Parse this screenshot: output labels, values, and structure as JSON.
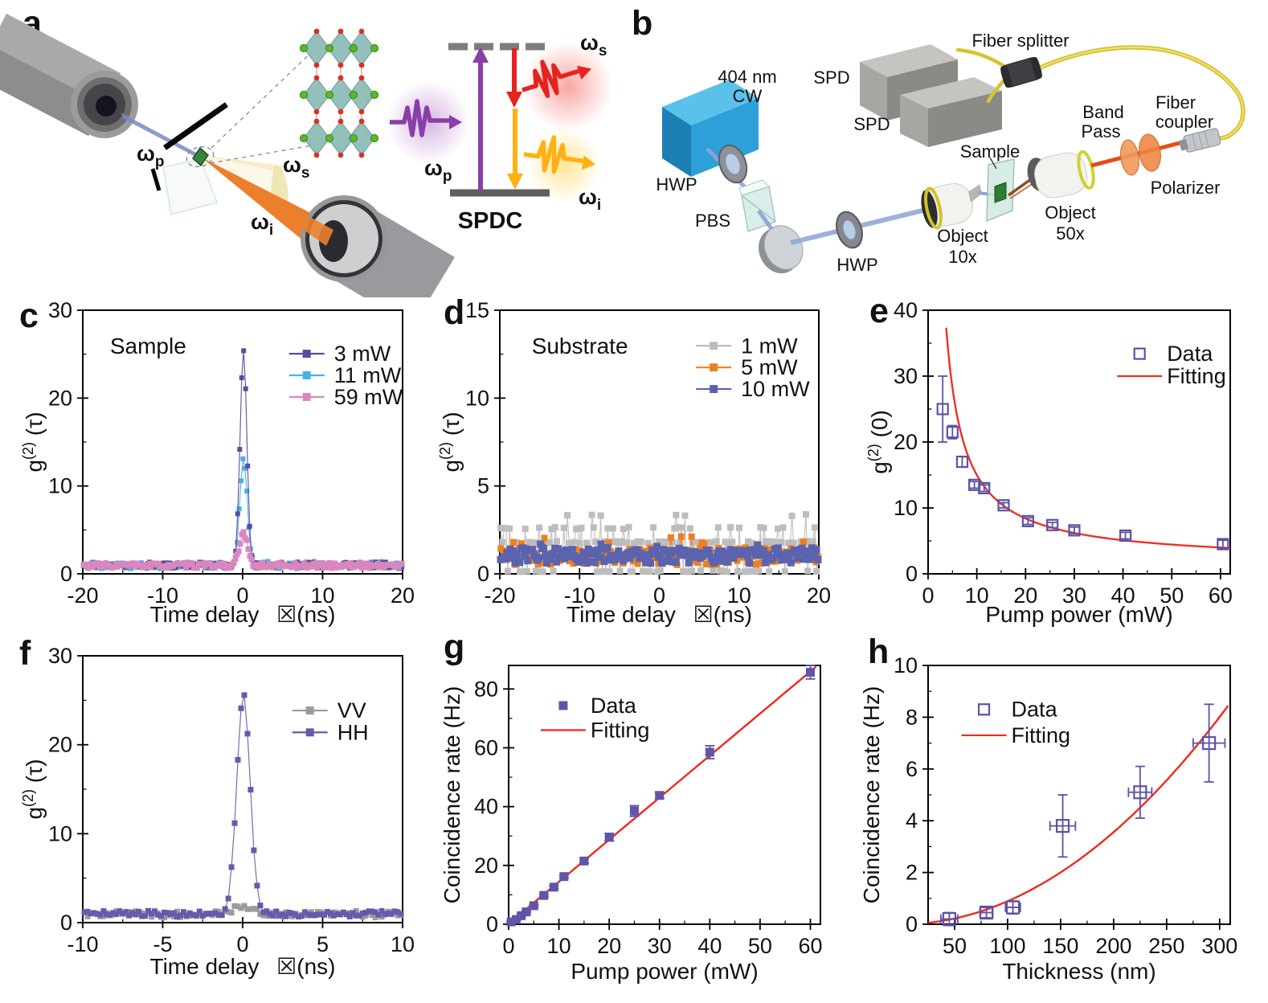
{
  "panels": {
    "a": "a",
    "b": "b",
    "c": "c",
    "d": "d",
    "e": "e",
    "f": "f",
    "g": "g",
    "h": "h"
  },
  "panel_a": {
    "omega_p_scene": {
      "base": "ω",
      "sub": "p"
    },
    "omega_s_scene": {
      "base": "ω",
      "sub": "s"
    },
    "omega_i_scene": {
      "base": "ω",
      "sub": "i"
    },
    "omega_p_level": {
      "base": "ω",
      "sub": "p"
    },
    "omega_s_level": {
      "base": "ω",
      "sub": "s"
    },
    "omega_i_level": {
      "base": "ω",
      "sub": "i"
    },
    "spdc_label": "SPDC"
  },
  "panel_b": {
    "laser_label": [
      "404 nm",
      "CW"
    ],
    "hwp1": "HWP",
    "pbs": "PBS",
    "hwp2": "HWP",
    "spd1": "SPD",
    "spd2": "SPD",
    "fiber_splitter": "Fiber splitter",
    "band_pass": [
      "Band",
      "Pass"
    ],
    "fiber_coupler": [
      "Fiber",
      "coupler"
    ],
    "sample": "Sample",
    "object10": [
      "Object",
      "10x"
    ],
    "object50": [
      "Object",
      "50x"
    ],
    "polarizer": "Polarizer"
  },
  "colors": {
    "fit_red": "#ee3124",
    "marker_purple": "#5f51a5",
    "purple_3mw": "#5b4b9e",
    "blue_11mw": "#47b1e6",
    "pink_59mw": "#d887bd",
    "gray_1mw": "#bdbdbd",
    "orange_5mw": "#f07f1f",
    "blue_10mw": "#5a63ae",
    "gray_vv": "#9b9b9b",
    "purple_hh": "#6a58ad"
  },
  "chart_data": [
    {
      "id": "c",
      "type": "line",
      "note": {
        "text": "Sample",
        "fx": 0.085,
        "fy": 0.165
      },
      "xlabel": "Time delay  ☒(ns)",
      "ylabel": {
        "pre": "g",
        "sup": "(2)",
        "post": " (τ)"
      },
      "xlim": [
        -20,
        20
      ],
      "ylim": [
        0,
        30
      ],
      "xticks": [
        -20,
        -10,
        0,
        10,
        20
      ],
      "yticks": [
        0,
        10,
        20,
        30
      ],
      "xminor": 5,
      "yminor": 5,
      "series": [
        {
          "name": "3 mW",
          "color": "#5b4b9e",
          "kind": "g2",
          "baseline": 1.0,
          "noise": 0.35,
          "peak": 24.5,
          "center": 0.1,
          "sigma": 0.42,
          "step": 0.25,
          "seed": 11,
          "marker": 6
        },
        {
          "name": "11 mW",
          "color": "#47b1e6",
          "kind": "g2",
          "baseline": 1.0,
          "noise": 0.42,
          "peak": 12.2,
          "center": 0.1,
          "sigma": 0.46,
          "step": 0.24,
          "seed": 22,
          "marker": 6
        },
        {
          "name": "59 mW",
          "color": "#d887bd",
          "kind": "g2",
          "baseline": 0.95,
          "noise": 0.3,
          "peak": 3.6,
          "center": 0.1,
          "sigma": 0.5,
          "step": 0.2,
          "seed": 33,
          "marker": 7
        }
      ],
      "draw_order": [
        1,
        0,
        2
      ],
      "legend": {
        "style": "series",
        "fx": 0.645,
        "fy": 0.165,
        "dfy": 0.082
      }
    },
    {
      "id": "d",
      "type": "line",
      "note": {
        "text": "Substrate",
        "fx": 0.1,
        "fy": 0.165
      },
      "xlabel": "Time delay  ☒(ns)",
      "ylabel": {
        "pre": "g",
        "sup": "(2)",
        "post": " (τ)"
      },
      "xlim": [
        -20,
        20
      ],
      "ylim": [
        0,
        15
      ],
      "xticks": [
        -20,
        -10,
        0,
        10,
        20
      ],
      "yticks": [
        0,
        5,
        10,
        15
      ],
      "xminor": 5,
      "yminor": 2.5,
      "series": [
        {
          "name": "1 mW",
          "color": "#bdbdbd",
          "kind": "levels",
          "levels": [
            0.13,
            0.95,
            1.8,
            2.6,
            3.35
          ],
          "weights": [
            0.24,
            0.18,
            0.4,
            0.14,
            0.04
          ],
          "step": 0.22,
          "seed": 41,
          "marker": 8
        },
        {
          "name": "5 mW",
          "color": "#f07f1f",
          "kind": "g2",
          "baseline": 1.0,
          "noise": 0.5,
          "peak": 0,
          "center": 0,
          "sigma": 1,
          "step": 0.26,
          "seed": 52,
          "marker": 8,
          "spike": [
            0.05,
            1.1
          ]
        },
        {
          "name": "10 mW",
          "color": "#5a63ae",
          "kind": "g2",
          "baseline": 1.05,
          "noise": 0.45,
          "peak": 0,
          "center": 0,
          "sigma": 1,
          "step": 0.2,
          "seed": 63,
          "marker": 9,
          "spike": [
            0.03,
            0.8
          ]
        }
      ],
      "draw_order": [
        0,
        1,
        2
      ],
      "legend": {
        "style": "series",
        "fx": 0.615,
        "fy": 0.135,
        "dfy": 0.082
      }
    },
    {
      "id": "e",
      "type": "scatter",
      "xlabel": "Pump power (mW)",
      "ylabel": {
        "pre": "g",
        "sup": "(2)",
        "post": " (0)"
      },
      "xlim": [
        0,
        62
      ],
      "ylim": [
        0,
        40
      ],
      "xticks": [
        0,
        10,
        20,
        30,
        40,
        50,
        60
      ],
      "yticks": [
        0,
        10,
        20,
        30,
        40
      ],
      "xminor": 5,
      "yminor": 5,
      "points": {
        "x": [
          3,
          5,
          7,
          9.5,
          11.5,
          15.5,
          20.5,
          25.5,
          30,
          40.5,
          60.5
        ],
        "y": [
          25,
          21.5,
          17,
          13.5,
          13,
          10.4,
          8,
          7.4,
          6.6,
          5.8,
          4.5
        ],
        "yerr": [
          5,
          1,
          0.8,
          0.5,
          0.5,
          0.4,
          0.5,
          0.4,
          0.5,
          0.5,
          0.6
        ],
        "open": true,
        "marker": 13,
        "color": "#5f51a5"
      },
      "fit": {
        "kind": "inv",
        "a": 132,
        "b": 1.8,
        "from": 2.6,
        "to": 62,
        "color": "#ee3124"
      },
      "legend": {
        "style": "fit",
        "labels": [
          "Data",
          "Fitting"
        ],
        "fx": 0.7,
        "fy": 0.165,
        "dfy": 0.085
      }
    },
    {
      "id": "f",
      "type": "line",
      "xlabel": "Time delay  ☒(ns)",
      "ylabel": {
        "pre": "g",
        "sup": "(2)",
        "post": " (τ)"
      },
      "xlim": [
        -10,
        10
      ],
      "ylim": [
        0,
        30
      ],
      "xticks": [
        -10,
        -5,
        0,
        5,
        10
      ],
      "yticks": [
        0,
        10,
        20,
        30
      ],
      "xminor": 2.5,
      "yminor": 5,
      "series": [
        {
          "name": "VV",
          "color": "#9b9b9b",
          "kind": "g2",
          "baseline": 0.95,
          "noise": 0.38,
          "peak": 0.9,
          "center": 0,
          "sigma": 0.6,
          "step": 0.2,
          "seed": 71,
          "marker": 7
        },
        {
          "name": "HH",
          "color": "#6a58ad",
          "kind": "g2",
          "baseline": 1.0,
          "noise": 0.35,
          "peak": 24.5,
          "center": 0.05,
          "sigma": 0.42,
          "step": 0.2,
          "seed": 82,
          "marker": 7
        }
      ],
      "draw_order": [
        0,
        1
      ],
      "legend": {
        "style": "series",
        "fx": 0.655,
        "fy": 0.205,
        "dfy": 0.082
      }
    },
    {
      "id": "g",
      "type": "scatter",
      "xlabel": "Pump power (mW)",
      "ylabel": "Coincidence rate (Hz)",
      "xlim": [
        0,
        62
      ],
      "ylim": [
        0,
        88
      ],
      "xticks": [
        0,
        10,
        20,
        30,
        40,
        50,
        60
      ],
      "yticks": [
        0,
        20,
        40,
        60,
        80
      ],
      "xminor": 5,
      "yminor": 10,
      "points": {
        "x": [
          0.5,
          1.5,
          2.5,
          3.5,
          5,
          7,
          9,
          11,
          15,
          20,
          25,
          30,
          40,
          60
        ],
        "y": [
          0.8,
          1.6,
          2.9,
          4.2,
          6.3,
          9.8,
          12.6,
          16.2,
          21.5,
          29.6,
          38.5,
          43.8,
          58.5,
          85.7
        ],
        "yerr": [
          0.3,
          0.3,
          0.3,
          0.3,
          0.4,
          0.4,
          0.5,
          0.5,
          0.7,
          1.3,
          1.8,
          1.1,
          2.2,
          2.3
        ],
        "open": false,
        "marker": 11,
        "color": "#6055a6"
      },
      "fit": {
        "kind": "lin",
        "m": 1.43,
        "b": 0.15,
        "from": 0.2,
        "to": 61.5,
        "color": "#f3271d"
      },
      "legend": {
        "style": "fit",
        "labels": [
          "Data",
          "Fitting"
        ],
        "fx": 0.175,
        "fy": 0.155,
        "dfy": 0.095
      }
    },
    {
      "id": "h",
      "type": "scatter",
      "xlabel": "Thickness (nm)",
      "ylabel": "Coincidence rate (Hz)",
      "xlim": [
        25,
        310
      ],
      "ylim": [
        0,
        10
      ],
      "xticks": [
        50,
        100,
        150,
        200,
        250,
        300
      ],
      "yticks": [
        0,
        2,
        4,
        6,
        8,
        10
      ],
      "xminor": 25,
      "yminor": 1,
      "points": {
        "x": [
          45,
          80,
          105,
          152,
          225,
          290
        ],
        "y": [
          0.2,
          0.45,
          0.65,
          3.8,
          5.1,
          7.0
        ],
        "yerr": [
          0.25,
          0.2,
          0.25,
          1.2,
          1.0,
          1.5
        ],
        "xerr": [
          8,
          6,
          7,
          12,
          11,
          15
        ],
        "open": true,
        "marker": 15,
        "color": "#5f51a5"
      },
      "fit": {
        "kind": "quad",
        "k": 8.9e-05,
        "from": 25,
        "to": 308,
        "color": "#f3271d"
      },
      "legend": {
        "style": "fit",
        "labels": [
          "Data",
          "Fitting"
        ],
        "fx": 0.185,
        "fy": 0.17,
        "dfy": 0.1
      }
    }
  ]
}
